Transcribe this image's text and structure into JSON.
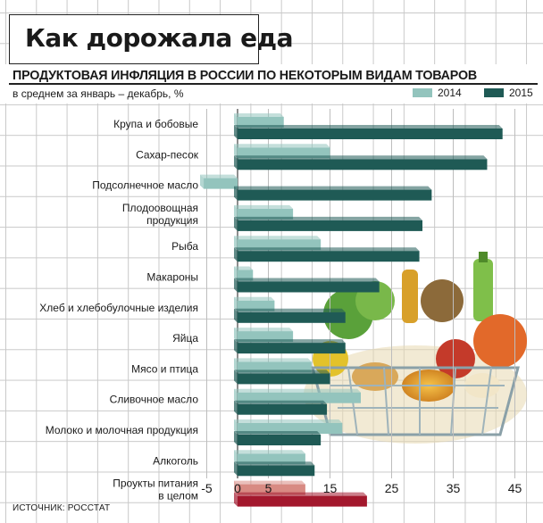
{
  "headline": "Как дорожала еда",
  "source": "ИСТОЧНИК: РОССТАТ",
  "colors": {
    "bar_2014": "#93c4bd",
    "bar_2015": "#1f5a55",
    "total_2014": "#d88a83",
    "total_2015": "#a3182d"
  },
  "chart_data": {
    "type": "bar",
    "orientation": "horizontal",
    "title": "ПРОДУКТОВАЯ ИНФЛЯЦИЯ В РОССИИ ПО НЕКОТОРЫМ ВИДАМ ТОВАРОВ",
    "subtitle": "в среднем за январь – декабрь, %",
    "xlim": [
      -5,
      45
    ],
    "x_ticks": [
      "-5",
      "0",
      "5",
      "15",
      "25",
      "35",
      "45"
    ],
    "x_tick_values": [
      -5,
      0,
      5,
      15,
      25,
      35,
      45
    ],
    "grid": true,
    "legend_position": "top-right",
    "categories": [
      "Крупа и бобовые",
      "Сахар-песок",
      "Подсолнечное масло",
      "Плодоовощная продукция",
      "Рыба",
      "Макароны",
      "Хлеб и хлебобулочные изделия",
      "Яйца",
      "Мясо и птица",
      "Сливочное масло",
      "Молоко и молочная продукция",
      "Алкоголь",
      "Проукты питания в целом"
    ],
    "series": [
      {
        "name": "2014",
        "values": [
          7.5,
          15,
          -5.5,
          9,
          13.5,
          2.5,
          6,
          9,
          12,
          20,
          17,
          11,
          11
        ]
      },
      {
        "name": "2015",
        "values": [
          43,
          40.5,
          31.5,
          30,
          29.5,
          23,
          17.5,
          17.5,
          15,
          14.5,
          13.5,
          12.5,
          21
        ]
      }
    ]
  }
}
